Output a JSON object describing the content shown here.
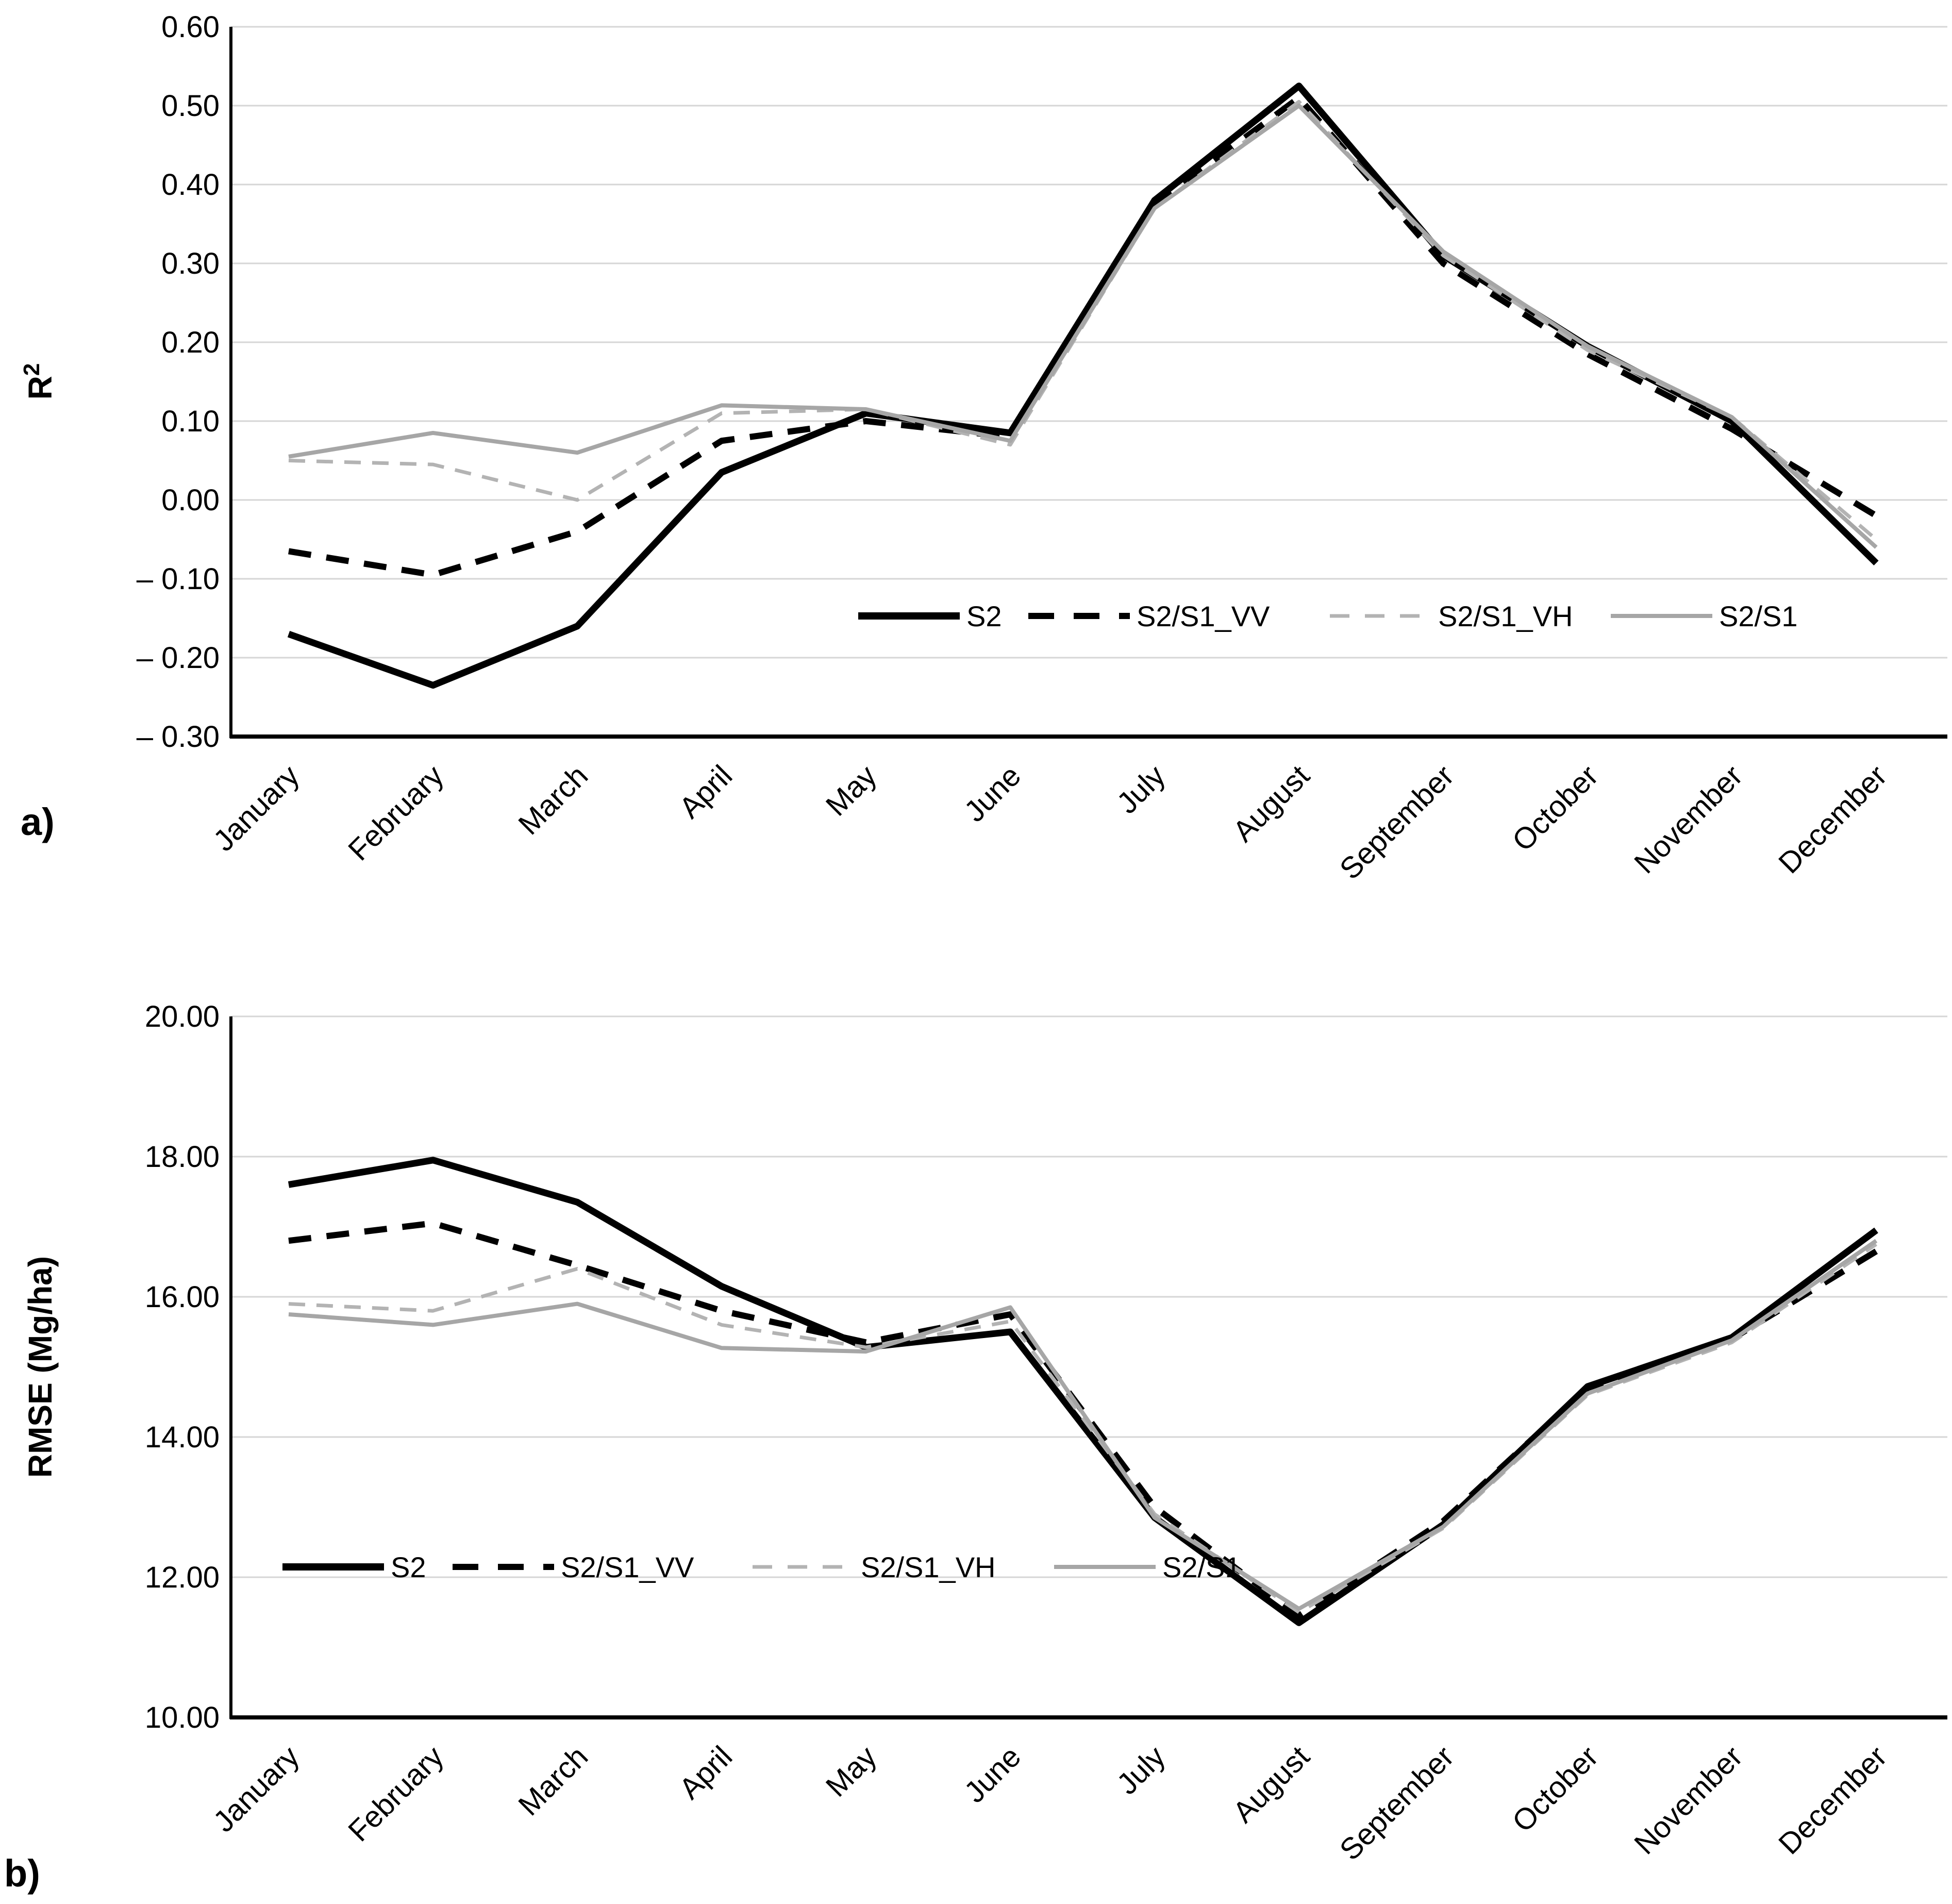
{
  "figure": {
    "background_color": "#ffffff",
    "gridline_color": "#d6d6d6",
    "axis_color": "#000000",
    "panel_a_label": "a)",
    "panel_b_label": "b)"
  },
  "chart_data": [
    {
      "type": "line",
      "panel": "a",
      "panel_label": "a)",
      "title": "",
      "xlabel": "",
      "ylabel": "R²",
      "ylabel_base": "R",
      "ylabel_super": "2",
      "ylim": [
        -0.3,
        0.6
      ],
      "ytick_step": 0.1,
      "grid": true,
      "legend_position": "inside-center-right",
      "ytick_labels": [
        "0.60",
        "0.50",
        "0.40",
        "0.30",
        "0.20",
        "0.10",
        "0.00",
        "– 0.10",
        "– 0.20",
        "– 0.30"
      ],
      "categories": [
        "January",
        "February",
        "March",
        "April",
        "May",
        "June",
        "July",
        "August",
        "September",
        "October",
        "November",
        "December"
      ],
      "series": [
        {
          "name": "S2",
          "color": "#000000",
          "style": "solid",
          "width": 13,
          "dash": null,
          "values": [
            -0.17,
            -0.235,
            -0.16,
            0.035,
            0.11,
            0.085,
            0.38,
            0.525,
            0.31,
            0.195,
            0.1,
            -0.08
          ]
        },
        {
          "name": "S2/S1_VV",
          "color": "#000000",
          "style": "dashed",
          "width": 12,
          "dash": [
            44,
            30
          ],
          "values": [
            -0.065,
            -0.095,
            -0.04,
            0.075,
            0.1,
            0.08,
            0.375,
            0.51,
            0.3,
            0.185,
            0.09,
            -0.02
          ]
        },
        {
          "name": "S2/S1_VH",
          "color": "#b3b3b3",
          "style": "dashed",
          "width": 7,
          "dash": [
            32,
            22
          ],
          "values": [
            0.05,
            0.045,
            0.0,
            0.11,
            0.115,
            0.07,
            0.37,
            0.505,
            0.31,
            0.19,
            0.105,
            -0.05
          ]
        },
        {
          "name": "S2/S1",
          "color": "#a6a6a6",
          "style": "solid",
          "width": 8,
          "dash": null,
          "values": [
            0.055,
            0.085,
            0.06,
            0.12,
            0.115,
            0.075,
            0.37,
            0.5,
            0.315,
            0.195,
            0.105,
            -0.06
          ]
        }
      ]
    },
    {
      "type": "line",
      "panel": "b",
      "panel_label": "b)",
      "title": "",
      "xlabel": "",
      "ylabel": "RMSE (Mg/ha)",
      "ylabel_base": "RMSE (Mg/ha)",
      "ylabel_super": "",
      "ylim": [
        10.0,
        20.0
      ],
      "ytick_step": 2.0,
      "grid": true,
      "legend_position": "inside-bottom-left",
      "ytick_labels": [
        "20.00",
        "18.00",
        "16.00",
        "14.00",
        "12.00",
        "10.00"
      ],
      "categories": [
        "January",
        "February",
        "March",
        "April",
        "May",
        "June",
        "July",
        "August",
        "September",
        "October",
        "November",
        "December"
      ],
      "series": [
        {
          "name": "S2",
          "color": "#000000",
          "style": "solid",
          "width": 13,
          "dash": null,
          "values": [
            17.6,
            17.95,
            17.35,
            16.15,
            15.28,
            15.5,
            12.85,
            11.35,
            12.75,
            14.72,
            15.42,
            16.95
          ]
        },
        {
          "name": "S2/S1_VV",
          "color": "#000000",
          "style": "dashed",
          "width": 12,
          "dash": [
            44,
            30
          ],
          "values": [
            16.8,
            17.05,
            16.45,
            15.8,
            15.35,
            15.75,
            13.0,
            11.45,
            12.8,
            14.7,
            15.4,
            16.65
          ]
        },
        {
          "name": "S2/S1_VH",
          "color": "#b3b3b3",
          "style": "dashed",
          "width": 7,
          "dash": [
            32,
            22
          ],
          "values": [
            15.9,
            15.8,
            16.4,
            15.6,
            15.28,
            15.65,
            12.9,
            11.5,
            12.7,
            14.6,
            15.35,
            16.75
          ]
        },
        {
          "name": "S2/S1",
          "color": "#a6a6a6",
          "style": "solid",
          "width": 8,
          "dash": null,
          "values": [
            15.75,
            15.6,
            15.9,
            15.27,
            15.22,
            15.85,
            12.85,
            11.55,
            12.72,
            14.62,
            15.38,
            16.8
          ]
        }
      ]
    }
  ]
}
